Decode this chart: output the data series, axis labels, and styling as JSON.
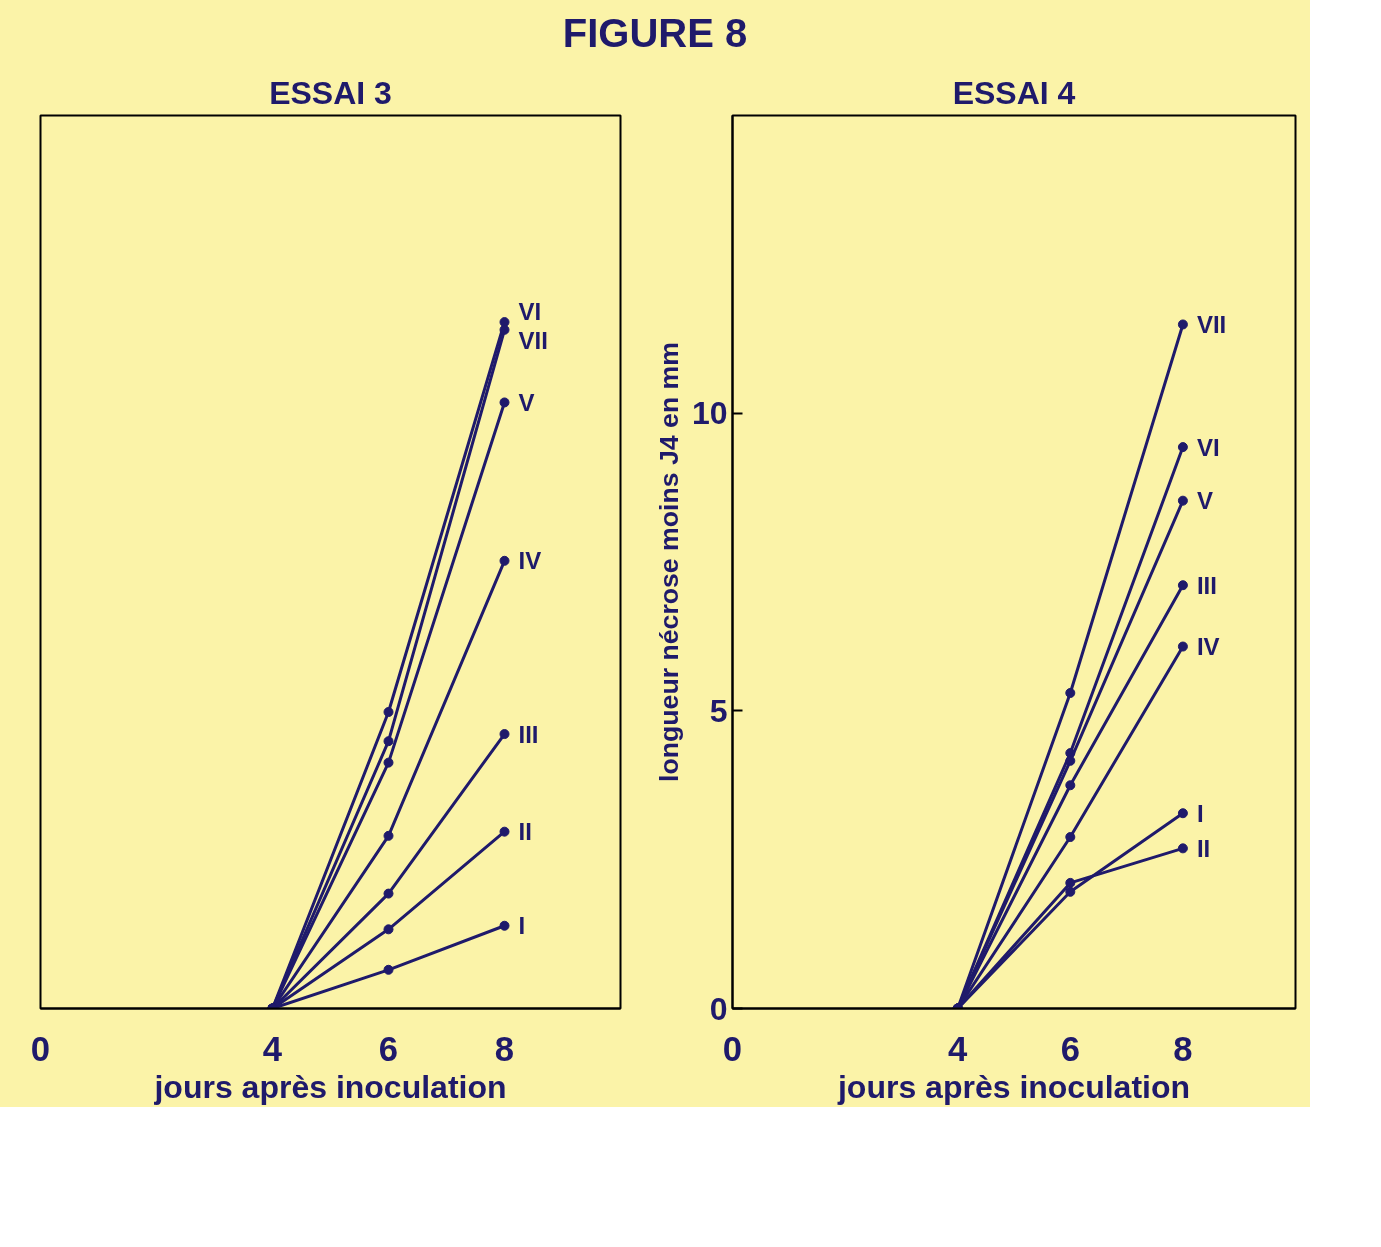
{
  "chart_data": [
    {
      "type": "line",
      "title": "ESSAI 3",
      "annotations": [
        "FIGURE 8"
      ],
      "xlabel": "jours après inoculation",
      "x": [
        4,
        6,
        8
      ],
      "xlim": [
        0,
        10
      ],
      "xticks": [
        0,
        4,
        6,
        8
      ],
      "ylim": [
        0,
        15
      ],
      "yticks": [
        0,
        5,
        10
      ],
      "tick_labels": "x",
      "marker": "circle",
      "legend": "right",
      "series": [
        {
          "name": "VI",
          "color": "#1f1a6b",
          "values": [
            0,
            4.98,
            11.53
          ]
        },
        {
          "name": "VII",
          "color": "#1f1a6b",
          "values": [
            0,
            4.49,
            11.4
          ]
        },
        {
          "name": "V",
          "color": "#1f1a6b",
          "values": [
            0,
            4.13,
            10.18
          ]
        },
        {
          "name": "IV",
          "color": "#1f1a6b",
          "values": [
            0,
            2.9,
            7.52
          ]
        },
        {
          "name": "III",
          "color": "#1f1a6b",
          "values": [
            0,
            1.93,
            4.61
          ]
        },
        {
          "name": "II",
          "color": "#1f1a6b",
          "values": [
            0,
            1.33,
            2.97
          ]
        },
        {
          "name": "I",
          "color": "#1f1a6b",
          "values": [
            0,
            0.65,
            1.39
          ]
        }
      ]
    },
    {
      "type": "line",
      "title": "ESSAI 4",
      "xlabel": "jours après inoculation",
      "ylabel": "longueur nécrose moins J4 en mm",
      "x": [
        4,
        6,
        8
      ],
      "xlim": [
        0,
        10
      ],
      "xticks": [
        0,
        4,
        6,
        8
      ],
      "ylim": [
        0,
        15
      ],
      "yticks": [
        0,
        5,
        10
      ],
      "marker": "circle",
      "legend": "right",
      "series": [
        {
          "name": "VII",
          "color": "#1f1a6b",
          "values": [
            0,
            5.3,
            11.49
          ]
        },
        {
          "name": "VI",
          "color": "#1f1a6b",
          "values": [
            0,
            4.29,
            9.43
          ]
        },
        {
          "name": "V",
          "color": "#1f1a6b",
          "values": [
            0,
            4.16,
            8.53
          ]
        },
        {
          "name": "III",
          "color": "#1f1a6b",
          "values": [
            0,
            3.75,
            7.11
          ]
        },
        {
          "name": "IV",
          "color": "#1f1a6b",
          "values": [
            0,
            2.88,
            6.08
          ]
        },
        {
          "name": "I",
          "color": "#1f1a6b",
          "values": [
            0,
            1.96,
            3.28
          ]
        },
        {
          "name": "II",
          "color": "#1f1a6b",
          "values": [
            0,
            2.11,
            2.69
          ]
        }
      ]
    }
  ]
}
